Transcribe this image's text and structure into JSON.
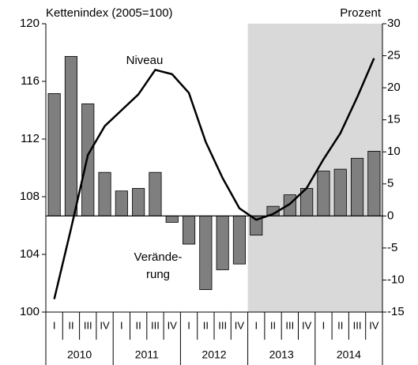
{
  "chart_data": {
    "type": "bar_line",
    "y_label": "Kettenindex (2005=100)",
    "y2_label": "Prozent",
    "categories": [
      "I",
      "II",
      "III",
      "IV",
      "I",
      "II",
      "III",
      "IV",
      "I",
      "II",
      "III",
      "IV",
      "I",
      "II",
      "III",
      "IV",
      "I",
      "II",
      "III",
      "IV"
    ],
    "groups": [
      "2010",
      "2011",
      "2012",
      "2013",
      "2014"
    ],
    "annotations": [
      "Niveau",
      "Verände-",
      "rung"
    ],
    "ylim": [
      100,
      120
    ],
    "yticks": [
      100,
      104,
      108,
      112,
      116,
      120
    ],
    "y2lim": [
      -15,
      30
    ],
    "y2ticks": [
      -15,
      -10,
      -5,
      0,
      5,
      10,
      15,
      20,
      25,
      30
    ],
    "series": [
      {
        "type": "bar",
        "axis": "y2",
        "color": "#7f7f7f",
        "values": [
          19.1,
          24.9,
          17.5,
          6.8,
          3.9,
          4.3,
          6.8,
          -1.0,
          -4.4,
          -11.5,
          -8.4,
          -7.5,
          -3.0,
          1.5,
          3.3,
          4.3,
          7.0,
          7.3,
          9.0,
          10.1
        ]
      },
      {
        "type": "line",
        "axis": "y",
        "color": "#000000",
        "values": [
          100.9,
          105.8,
          110.9,
          112.9,
          114.0,
          115.1,
          116.8,
          116.5,
          115.2,
          111.8,
          109.3,
          107.2,
          106.4,
          106.8,
          107.5,
          108.6,
          110.6,
          112.4,
          114.9,
          117.6
        ]
      }
    ]
  }
}
